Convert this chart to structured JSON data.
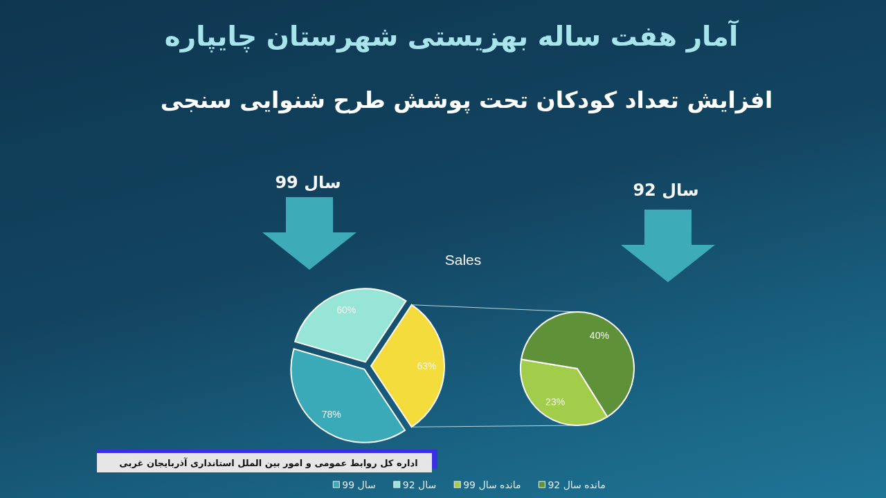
{
  "chart_data": [
    {
      "type": "pie",
      "title": "آمار هفت ساله بهزیستی شهرستان چایپاره",
      "subtitle": "افزایش تعداد کودکان تحت پوشش طرح شنوایی سنجی",
      "annotations": [
        "سال 99",
        "Sales",
        "اداره کل روابط عمومی و امور بین الملل استانداری آذربایجان غربی"
      ],
      "categories": [
        "سال 99",
        "سال 92",
        null
      ],
      "values": [
        78,
        60,
        63
      ],
      "colors": [
        "#3aaab9",
        "#97e5d6",
        "#f3dc3b"
      ],
      "value_labels": [
        "78%",
        "60%",
        "63%"
      ],
      "legend": "bottom"
    },
    {
      "type": "pie",
      "annotations": [
        "سال 92"
      ],
      "categories": [
        "مانده سال 99",
        "مانده سال 92"
      ],
      "values": [
        23,
        40
      ],
      "colors": [
        "#a1cd4a",
        "#5f9138"
      ],
      "value_labels": [
        "23%",
        "40%"
      ],
      "legend": "bottom"
    }
  ]
}
